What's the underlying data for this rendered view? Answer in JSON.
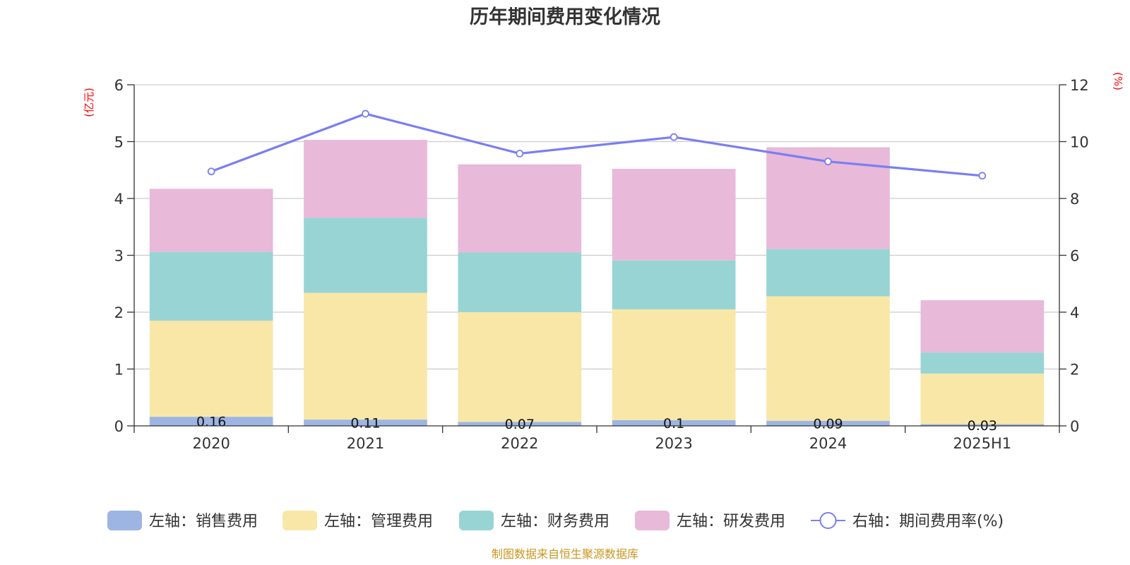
{
  "chart_data": {
    "type": "bar",
    "title": "历年期间费用变化情况",
    "left_unit": "(亿元)",
    "right_unit": "(%)",
    "categories": [
      "2020",
      "2021",
      "2022",
      "2023",
      "2024",
      "2025H1"
    ],
    "left_axis": {
      "ylim": [
        0,
        6
      ],
      "ticks": [
        "0",
        "1",
        "2",
        "3",
        "4",
        "5",
        "6"
      ]
    },
    "right_axis": {
      "ylim": [
        0,
        12
      ],
      "ticks": [
        "0",
        "2",
        "4",
        "6",
        "8",
        "10",
        "12"
      ]
    },
    "grid": true,
    "stacked_series": [
      {
        "name": "左轴：销售费用",
        "color": "#9db5e3",
        "values": [
          0.16,
          0.11,
          0.07,
          0.1,
          0.09,
          0.03
        ],
        "labels": [
          "0.16",
          "0.11",
          "0.07",
          "0.1",
          "0.09",
          "0.03"
        ]
      },
      {
        "name": "左轴：管理费用",
        "color": "#f8e7a7",
        "values": [
          1.69,
          2.23,
          1.93,
          1.95,
          2.19,
          0.89
        ]
      },
      {
        "name": "左轴：财务费用",
        "color": "#98d4d4",
        "values": [
          1.21,
          1.32,
          1.05,
          0.86,
          0.83,
          0.37
        ]
      },
      {
        "name": "左轴：研发费用",
        "color": "#e8b9d8",
        "values": [
          1.11,
          1.37,
          1.55,
          1.61,
          1.79,
          0.92
        ]
      }
    ],
    "line_series": {
      "name": "右轴：期间费用率(%)",
      "color": "#7b7ff0",
      "values": [
        8.95,
        10.98,
        9.58,
        10.16,
        9.3,
        8.8
      ]
    },
    "legend_position": "bottom",
    "source": "制图数据来自恒生聚源数据库"
  }
}
